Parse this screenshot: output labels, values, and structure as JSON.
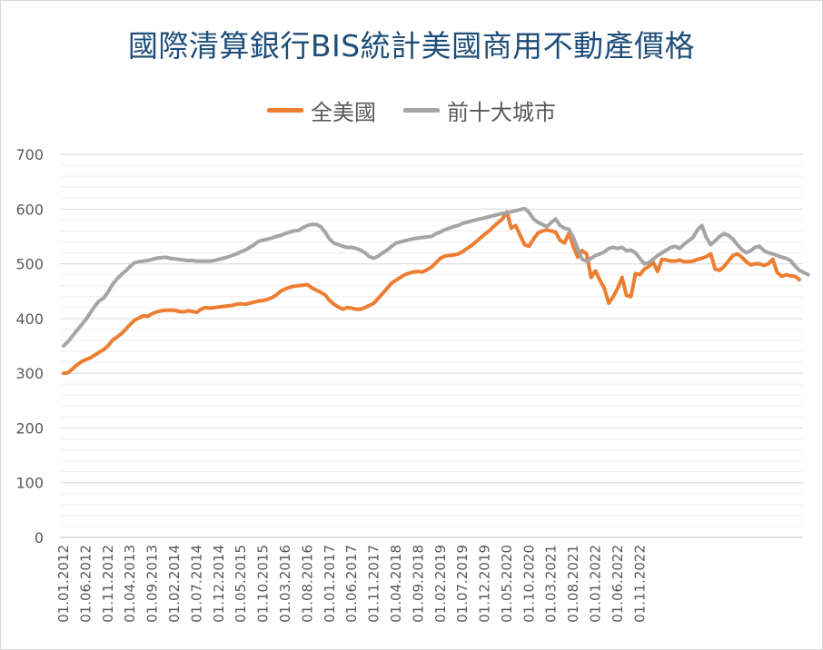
{
  "chart_data": {
    "type": "line",
    "title": "國際清算銀行BIS統計美國商用不動產價格",
    "xlabel": "",
    "ylabel": "",
    "ylim": [
      0,
      700
    ],
    "yticks": [
      0,
      100,
      200,
      300,
      400,
      500,
      600,
      700
    ],
    "grid": true,
    "legend_position": "top",
    "x_tick_labels": [
      "01.01.2012",
      "01.06.2012",
      "01.11.2012",
      "01.04.2013",
      "01.09.2013",
      "01.02.2014",
      "01.07.2014",
      "01.12.2014",
      "01.05.2015",
      "01.10.2015",
      "01.03.2016",
      "01.08.2016",
      "01.01.2017",
      "01.06.2017",
      "01.11.2017",
      "01.04.2018",
      "01.09.2018",
      "01.02.2019",
      "01.07.2019",
      "01.12.2019",
      "01.05.2020",
      "01.10.2020",
      "01.03.2021",
      "01.08.2021",
      "01.01.2022",
      "01.06.2022",
      "01.11.2022"
    ],
    "x_start": "2012-01",
    "series": [
      {
        "name": "全美國",
        "color": "#ed7d31",
        "values": [
          300,
          301,
          308,
          315,
          321,
          325,
          328,
          333,
          338,
          343,
          350,
          360,
          366,
          372,
          380,
          389,
          397,
          401,
          405,
          404,
          409,
          412,
          414,
          415,
          415,
          415,
          413,
          412,
          414,
          413,
          411,
          417,
          420,
          419,
          420,
          421,
          422,
          423,
          424,
          426,
          427,
          426,
          428,
          430,
          432,
          433,
          435,
          438,
          443,
          450,
          454,
          457,
          459,
          460,
          461,
          462,
          456,
          452,
          448,
          443,
          433,
          426,
          421,
          417,
          420,
          419,
          417,
          417,
          420,
          424,
          428,
          437,
          446,
          455,
          465,
          470,
          475,
          480,
          483,
          485,
          486,
          485,
          489,
          494,
          502,
          510,
          514,
          515,
          516,
          518,
          522,
          528,
          533,
          540,
          547,
          554,
          560,
          568,
          575,
          582,
          595,
          565,
          570,
          552,
          535,
          532,
          545,
          556,
          560,
          562,
          560,
          558,
          543,
          538,
          556,
          532,
          512,
          524,
          518,
          475,
          487,
          470,
          455,
          428,
          440,
          455,
          475,
          442,
          440,
          482,
          480,
          490,
          495,
          503,
          486,
          508,
          507,
          505,
          505,
          507,
          504,
          504,
          505,
          508,
          510,
          513,
          518,
          490,
          488,
          495,
          505,
          515,
          518,
          512,
          504,
          498,
          500,
          500,
          497,
          500,
          508,
          484,
          477,
          480,
          478,
          477,
          471
        ]
      },
      {
        "name": "前十大城市",
        "color": "#a5a5a5",
        "values": [
          350,
          358,
          368,
          378,
          388,
          398,
          410,
          422,
          432,
          437,
          448,
          462,
          472,
          480,
          487,
          495,
          502,
          504,
          505,
          506,
          508,
          510,
          511,
          512,
          510,
          509,
          508,
          507,
          506,
          506,
          505,
          505,
          505,
          505,
          506,
          508,
          510,
          512,
          515,
          518,
          522,
          525,
          530,
          535,
          541,
          543,
          545,
          547,
          550,
          552,
          555,
          558,
          560,
          561,
          566,
          570,
          572,
          572,
          568,
          558,
          545,
          538,
          535,
          532,
          530,
          530,
          528,
          525,
          520,
          513,
          510,
          514,
          520,
          525,
          532,
          538,
          540,
          542,
          544,
          546,
          547,
          548,
          549,
          550,
          555,
          558,
          562,
          565,
          568,
          570,
          574,
          576,
          578,
          580,
          582,
          584,
          586,
          588,
          590,
          592,
          593,
          595,
          597,
          599,
          601,
          594,
          582,
          576,
          572,
          568,
          575,
          582,
          570,
          565,
          563,
          548,
          528,
          508,
          505,
          510,
          515,
          518,
          522,
          528,
          530,
          528,
          530,
          524,
          525,
          520,
          510,
          500,
          502,
          508,
          515,
          520,
          525,
          530,
          532,
          528,
          536,
          542,
          548,
          562,
          570,
          548,
          535,
          542,
          550,
          555,
          552,
          545,
          535,
          526,
          520,
          524,
          530,
          532,
          524,
          520,
          518,
          515,
          512,
          510,
          506,
          496,
          488,
          484,
          480
        ]
      }
    ]
  }
}
